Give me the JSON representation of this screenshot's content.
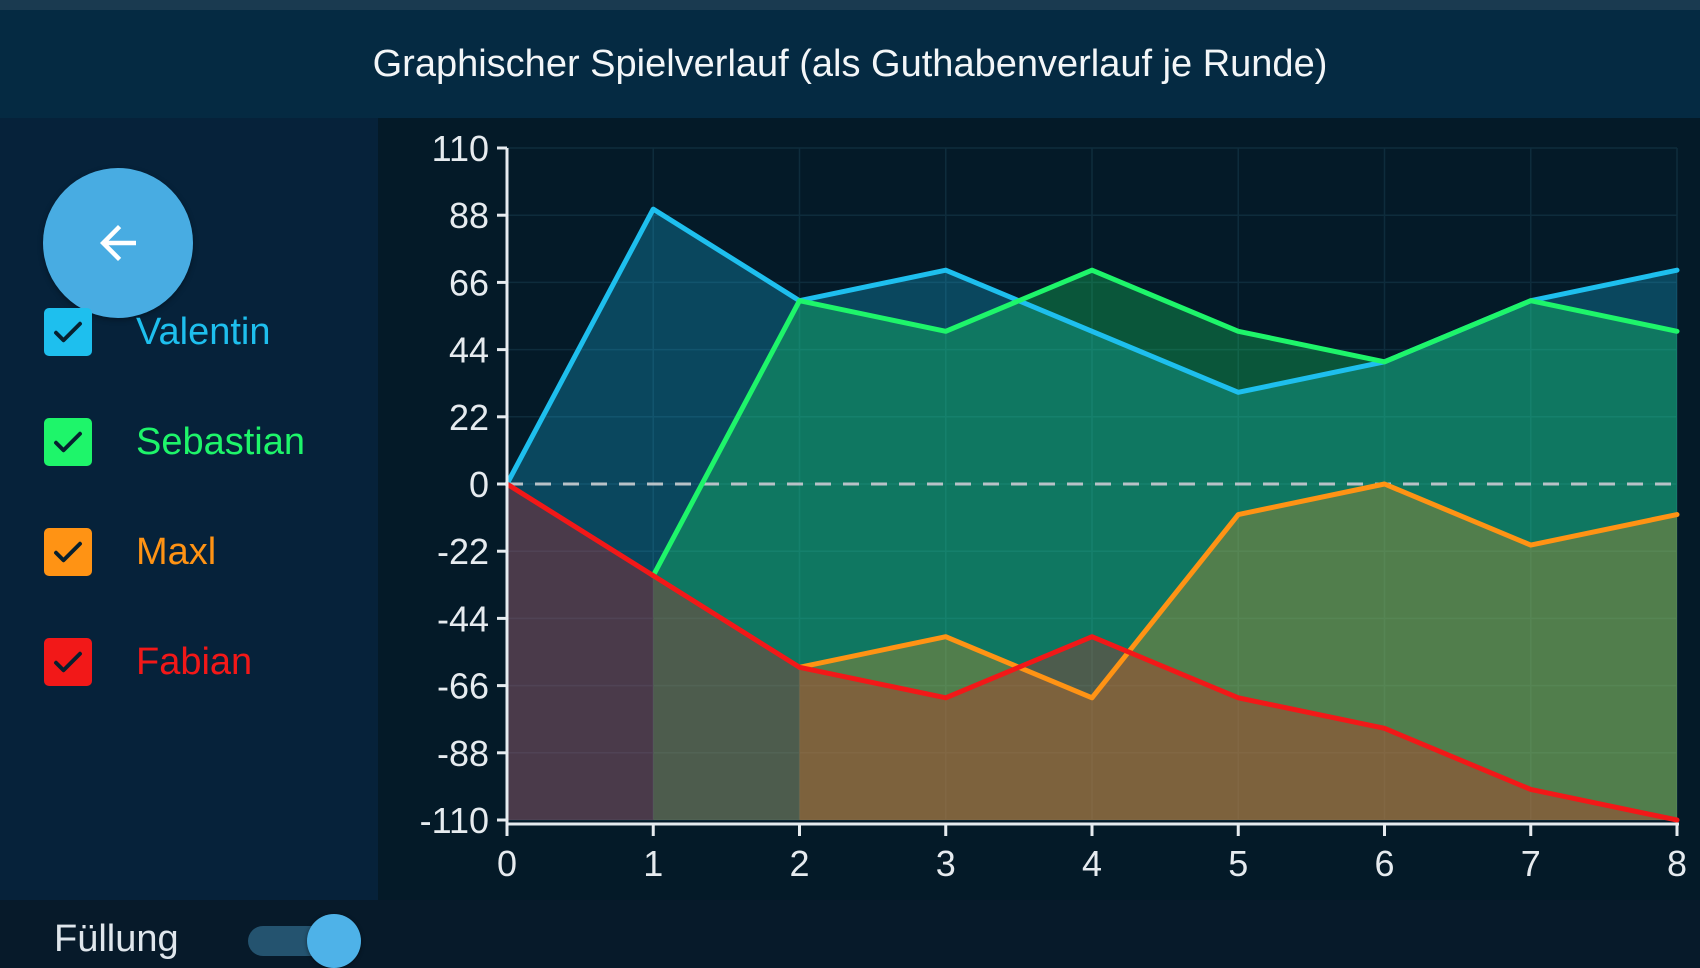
{
  "header": {
    "title": "Graphischer Spielverlauf (als Guthabenverlauf je Runde)"
  },
  "icons": {
    "back": "arrow-left-icon",
    "check": "check-icon"
  },
  "legend": {
    "items": [
      {
        "label": "Valentin",
        "color": "#1ebfee",
        "checked": true
      },
      {
        "label": "Sebastian",
        "color": "#1ef56a",
        "checked": true
      },
      {
        "label": "Maxl",
        "color": "#ff9314",
        "checked": true
      },
      {
        "label": "Fabian",
        "color": "#f21818",
        "checked": true
      }
    ]
  },
  "fill_toggle": {
    "label": "Füllung",
    "on": true
  },
  "chart_data": {
    "type": "area",
    "title": "Graphischer Spielverlauf (als Guthabenverlauf je Runde)",
    "xlabel": "",
    "ylabel": "",
    "x": [
      0,
      1,
      2,
      3,
      4,
      5,
      6,
      7,
      8
    ],
    "xlim": [
      0,
      8
    ],
    "ylim": [
      -110,
      110
    ],
    "yticks": [
      110,
      88,
      66,
      44,
      22,
      0,
      -22,
      -44,
      -66,
      -88,
      -110
    ],
    "xticks": [
      0,
      1,
      2,
      3,
      4,
      5,
      6,
      7,
      8
    ],
    "baseline": -110,
    "zero_line": {
      "value": 0,
      "style": "dashed"
    },
    "grid": true,
    "legend": "left",
    "series": [
      {
        "name": "Valentin",
        "color": "#1ebfee",
        "values": [
          0,
          90,
          60,
          70,
          50,
          30,
          40,
          60,
          70
        ]
      },
      {
        "name": "Sebastian",
        "color": "#1ef56a",
        "values": [
          null,
          -30,
          60,
          50,
          70,
          50,
          40,
          60,
          50
        ]
      },
      {
        "name": "Maxl",
        "color": "#ff9314",
        "values": [
          null,
          null,
          -60,
          -50,
          -70,
          -10,
          0,
          -20,
          -10
        ]
      },
      {
        "name": "Fabian",
        "color": "#f21818",
        "values": [
          0,
          -30,
          -60,
          -70,
          -50,
          -70,
          -80,
          -100,
          -110
        ]
      }
    ]
  }
}
